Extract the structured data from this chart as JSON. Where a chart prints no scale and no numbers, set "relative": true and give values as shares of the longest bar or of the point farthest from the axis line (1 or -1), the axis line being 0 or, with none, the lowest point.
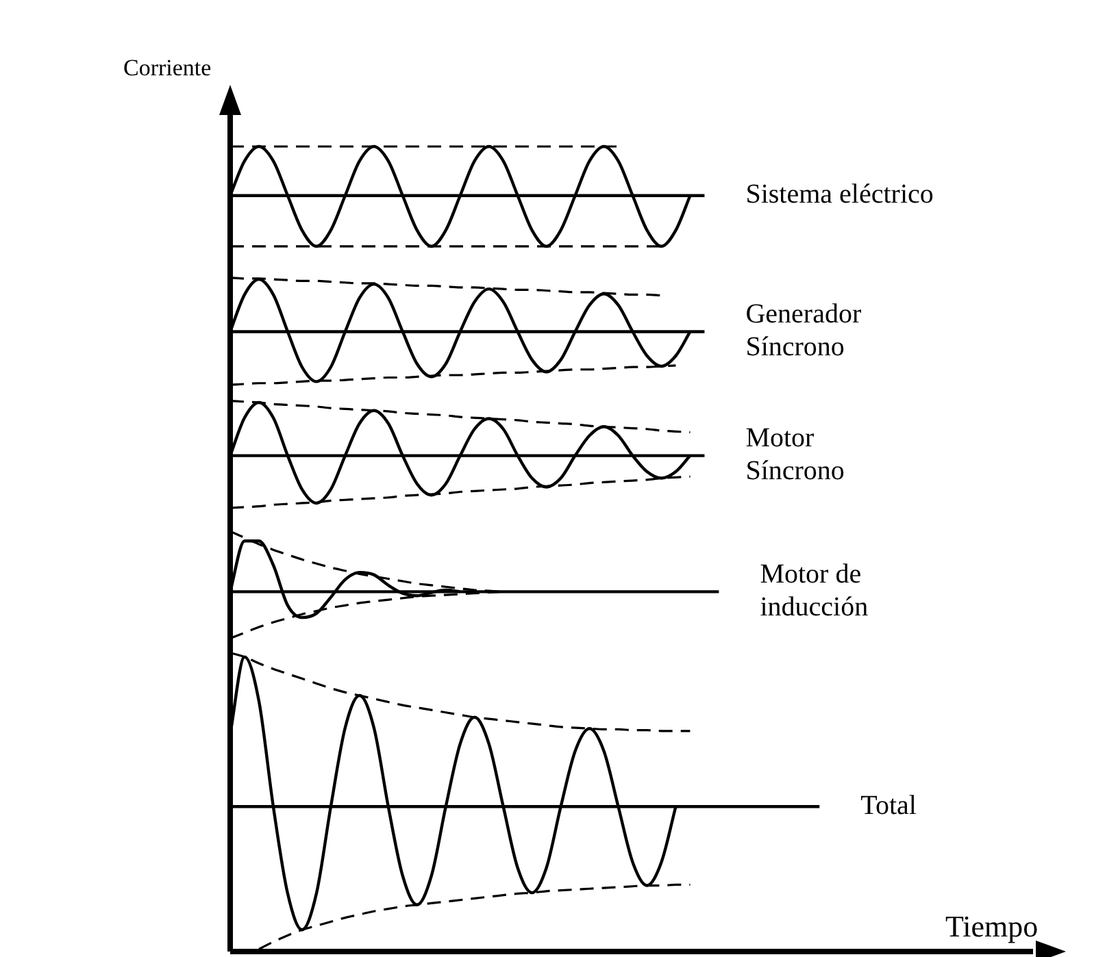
{
  "chart_data": {
    "type": "line",
    "relative": true,
    "xlabel": "Tiempo",
    "ylabel": "Corriente",
    "legend": false,
    "marker": "none",
    "categories": [
      null,
      null,
      null,
      null,
      null,
      null,
      null,
      null,
      null,
      null,
      null,
      null,
      null,
      null,
      null,
      null,
      null,
      null,
      null,
      null,
      null,
      null,
      null,
      null,
      null,
      null,
      null,
      null,
      null,
      null,
      null,
      null,
      null,
      null,
      null,
      null,
      null,
      null,
      null,
      null,
      null,
      null,
      null,
      null,
      null,
      null,
      null,
      null,
      null,
      null,
      null,
      null,
      null,
      null,
      null,
      null,
      null,
      null
    ],
    "series": [
      {
        "color": "#000000",
        "line_style": "solid",
        "values": [
          0.939,
          0.982,
          1,
          0.982,
          0.939,
          0.896,
          0.876,
          0.896,
          0.939,
          0.982,
          1,
          0.982,
          0.939,
          0.896,
          0.876,
          0.896,
          0.939,
          0.982,
          1,
          0.982,
          0.939,
          0.896,
          0.876,
          0.896,
          0.939,
          0.982,
          1,
          0.982,
          0.939,
          0.896,
          0.876,
          0.896,
          0.939,
          null,
          null,
          null,
          null,
          null,
          null,
          null,
          null,
          null,
          null,
          null,
          null,
          null,
          null,
          null,
          null,
          null,
          null,
          null,
          null,
          null,
          null,
          null,
          null,
          null
        ]
      },
      {
        "color": "#000000",
        "line_style": "dashed",
        "values": [
          1,
          1,
          1,
          1,
          1,
          1,
          1,
          1,
          1,
          1,
          1,
          1,
          1,
          1,
          1,
          1,
          1,
          1,
          1,
          1,
          1,
          1,
          1,
          1,
          1,
          1,
          1,
          1,
          null,
          null,
          null,
          null,
          null,
          null,
          null,
          null,
          null,
          null,
          null,
          null,
          null,
          null,
          null,
          null,
          null,
          null,
          null,
          null,
          null,
          null,
          null,
          null,
          null,
          null,
          null,
          null,
          null,
          null
        ]
      },
      {
        "color": "#000000",
        "line_style": "dashed",
        "values": [
          0.876,
          0.876,
          0.876,
          0.876,
          0.876,
          0.876,
          0.876,
          0.876,
          0.876,
          0.876,
          0.876,
          0.876,
          0.876,
          0.876,
          0.876,
          0.876,
          0.876,
          0.876,
          0.876,
          0.876,
          0.876,
          0.876,
          0.876,
          0.876,
          0.876,
          0.876,
          0.876,
          0.876,
          0.876,
          0.876,
          0.876,
          null,
          null,
          null,
          null,
          null,
          null,
          null,
          null,
          null,
          null,
          null,
          null,
          null,
          null,
          null,
          null,
          null,
          null,
          null,
          null,
          null,
          null,
          null,
          null,
          null,
          null,
          null
        ]
      },
      {
        "name": "Sistema eléctrico",
        "color": "#000000",
        "line_style": "solid",
        "values": [
          0.939,
          0.939,
          0.939,
          0.939,
          0.939,
          0.939,
          0.939,
          0.939,
          0.939,
          0.939,
          0.939,
          0.939,
          0.939,
          0.939,
          0.939,
          0.939,
          0.939,
          0.939,
          0.939,
          0.939,
          0.939,
          0.939,
          0.939,
          0.939,
          0.939,
          0.939,
          0.939,
          0.939,
          0.939,
          0.939,
          0.939,
          0.939,
          0.939,
          0.939,
          null,
          null,
          null,
          null,
          null,
          null,
          null,
          null,
          null,
          null,
          null,
          null,
          null,
          null,
          null,
          null,
          null,
          null,
          null,
          null,
          null,
          null,
          null,
          null
        ]
      },
      {
        "color": "#000000",
        "line_style": "solid",
        "values": [
          0.77,
          0.816,
          0.835,
          0.816,
          0.77,
          0.726,
          0.708,
          0.726,
          0.77,
          0.812,
          0.829,
          0.812,
          0.77,
          0.73,
          0.714,
          0.73,
          0.77,
          0.807,
          0.823,
          0.807,
          0.77,
          0.735,
          0.72,
          0.735,
          0.77,
          0.803,
          0.817,
          0.803,
          0.77,
          0.74,
          0.727,
          0.74,
          0.77,
          null,
          null,
          null,
          null,
          null,
          null,
          null,
          null,
          null,
          null,
          null,
          null,
          null,
          null,
          null,
          null,
          null,
          null,
          null,
          null,
          null,
          null,
          null,
          null,
          null
        ]
      },
      {
        "color": "#000000",
        "line_style": "dashed",
        "values": [
          0.837,
          0.836,
          0.836,
          0.835,
          0.834,
          0.833,
          0.833,
          0.832,
          0.831,
          0.83,
          0.83,
          0.829,
          0.828,
          0.827,
          0.827,
          0.826,
          0.825,
          0.825,
          0.824,
          0.823,
          0.822,
          0.822,
          0.821,
          0.82,
          0.819,
          0.819,
          0.818,
          0.817,
          0.816,
          0.816,
          0.815,
          null,
          null,
          null,
          null,
          null,
          null,
          null,
          null,
          null,
          null,
          null,
          null,
          null,
          null,
          null,
          null,
          null,
          null,
          null,
          null,
          null,
          null,
          null,
          null,
          null,
          null,
          null
        ]
      },
      {
        "color": "#000000",
        "line_style": "dashed",
        "values": [
          0.704,
          0.705,
          0.706,
          0.706,
          0.707,
          0.708,
          0.709,
          0.709,
          0.71,
          0.711,
          0.712,
          0.713,
          0.713,
          0.714,
          0.715,
          0.716,
          0.716,
          0.717,
          0.718,
          0.719,
          0.719,
          0.72,
          0.721,
          0.722,
          0.723,
          0.723,
          0.724,
          0.725,
          0.726,
          0.726,
          0.727,
          0.728,
          null,
          null,
          null,
          null,
          null,
          null,
          null,
          null,
          null,
          null,
          null,
          null,
          null,
          null,
          null,
          null,
          null,
          null,
          null,
          null,
          null,
          null,
          null,
          null,
          null,
          null
        ]
      },
      {
        "name": "Generador\nSíncrono",
        "color": "#000000",
        "line_style": "solid",
        "values": [
          0.77,
          0.77,
          0.77,
          0.77,
          0.77,
          0.77,
          0.77,
          0.77,
          0.77,
          0.77,
          0.77,
          0.77,
          0.77,
          0.77,
          0.77,
          0.77,
          0.77,
          0.77,
          0.77,
          0.77,
          0.77,
          0.77,
          0.77,
          0.77,
          0.77,
          0.77,
          0.77,
          0.77,
          0.77,
          0.77,
          0.77,
          0.77,
          0.77,
          0.77,
          null,
          null,
          null,
          null,
          null,
          null,
          null,
          null,
          null,
          null,
          null,
          null,
          null,
          null,
          null,
          null,
          null,
          null,
          null,
          null,
          null,
          null,
          null,
          null
        ]
      },
      {
        "color": "#000000",
        "line_style": "solid",
        "values": [
          0.616,
          0.663,
          0.682,
          0.663,
          0.616,
          0.574,
          0.557,
          0.574,
          0.616,
          0.656,
          0.672,
          0.656,
          0.616,
          0.581,
          0.567,
          0.581,
          0.616,
          0.649,
          0.662,
          0.649,
          0.616,
          0.588,
          0.577,
          0.588,
          0.616,
          0.641,
          0.652,
          0.641,
          0.616,
          0.596,
          0.588,
          0.596,
          0.616,
          null,
          null,
          null,
          null,
          null,
          null,
          null,
          null,
          null,
          null,
          null,
          null,
          null,
          null,
          null,
          null,
          null,
          null,
          null,
          null,
          null,
          null,
          null,
          null,
          null
        ]
      },
      {
        "color": "#000000",
        "line_style": "dashed",
        "values": [
          0.684,
          0.683,
          0.682,
          0.68,
          0.679,
          0.678,
          0.677,
          0.675,
          0.674,
          0.673,
          0.672,
          0.671,
          0.669,
          0.668,
          0.667,
          0.666,
          0.664,
          0.663,
          0.662,
          0.661,
          0.66,
          0.658,
          0.657,
          0.656,
          0.655,
          0.653,
          0.652,
          0.651,
          0.65,
          0.649,
          0.647,
          0.646,
          0.645,
          null,
          null,
          null,
          null,
          null,
          null,
          null,
          null,
          null,
          null,
          null,
          null,
          null,
          null,
          null,
          null,
          null,
          null,
          null,
          null,
          null,
          null,
          null,
          null,
          null
        ]
      },
      {
        "color": "#000000",
        "line_style": "dashed",
        "values": [
          0.551,
          0.552,
          0.553,
          0.555,
          0.556,
          0.557,
          0.558,
          0.56,
          0.561,
          0.562,
          0.563,
          0.564,
          0.566,
          0.567,
          0.568,
          0.569,
          0.571,
          0.572,
          0.573,
          0.574,
          0.575,
          0.577,
          0.578,
          0.579,
          0.58,
          0.582,
          0.583,
          0.584,
          0.585,
          0.586,
          0.588,
          0.589,
          0.59,
          null,
          null,
          null,
          null,
          null,
          null,
          null,
          null,
          null,
          null,
          null,
          null,
          null,
          null,
          null,
          null,
          null,
          null,
          null,
          null,
          null,
          null,
          null,
          null,
          null
        ]
      },
      {
        "name": "Motor\nSíncrono",
        "color": "#000000",
        "line_style": "solid",
        "values": [
          0.616,
          0.616,
          0.616,
          0.616,
          0.616,
          0.616,
          0.616,
          0.616,
          0.616,
          0.616,
          0.616,
          0.616,
          0.616,
          0.616,
          0.616,
          0.616,
          0.616,
          0.616,
          0.616,
          0.616,
          0.616,
          0.616,
          0.616,
          0.616,
          0.616,
          0.616,
          0.616,
          0.616,
          0.616,
          0.616,
          0.616,
          0.616,
          0.616,
          0.616,
          null,
          null,
          null,
          null,
          null,
          null,
          null,
          null,
          null,
          null,
          null,
          null,
          null,
          null,
          null,
          null,
          null,
          null,
          null,
          null,
          null,
          null,
          null,
          null
        ]
      },
      {
        "color": "#000000",
        "line_style": "solid",
        "values": [
          0.447,
          0.51,
          0.51,
          0.48,
          0.43,
          0.415,
          0.42,
          0.44,
          0.462,
          0.471,
          0.468,
          0.455,
          0.445,
          0.442,
          0.446,
          0.449,
          0.447,
          null,
          null,
          null,
          null,
          null,
          null,
          null,
          null,
          null,
          null,
          null,
          null,
          null,
          null,
          null,
          null,
          null,
          null,
          null,
          null,
          null,
          null,
          null,
          null,
          null,
          null,
          null,
          null,
          null,
          null,
          null,
          null,
          null,
          null,
          null,
          null,
          null,
          null,
          null,
          null,
          null
        ]
      },
      {
        "color": "#000000",
        "line_style": "dashed",
        "values": [
          0.522,
          0.514,
          0.506,
          0.499,
          0.493,
          0.487,
          0.482,
          0.477,
          0.473,
          0.469,
          0.466,
          0.463,
          0.46,
          0.457,
          0.455,
          0.453,
          0.451,
          0.449,
          0.448,
          0.447,
          null,
          null,
          null,
          null,
          null,
          null,
          null,
          null,
          null,
          null,
          null,
          null,
          null,
          null,
          null,
          null,
          null,
          null,
          null,
          null,
          null,
          null,
          null,
          null,
          null,
          null,
          null,
          null,
          null,
          null,
          null,
          null,
          null,
          null,
          null,
          null,
          null,
          null
        ]
      },
      {
        "color": "#000000",
        "line_style": "dashed",
        "values": [
          0.389,
          0.396,
          0.403,
          0.409,
          0.414,
          0.419,
          0.423,
          0.427,
          0.43,
          0.433,
          0.435,
          0.437,
          0.439,
          0.441,
          0.442,
          0.443,
          0.444,
          0.445,
          0.446,
          0.447,
          null,
          null,
          null,
          null,
          null,
          null,
          null,
          null,
          null,
          null,
          null,
          null,
          null,
          null,
          null,
          null,
          null,
          null,
          null,
          null,
          null,
          null,
          null,
          null,
          null,
          null,
          null,
          null,
          null,
          null,
          null,
          null,
          null,
          null,
          null,
          null,
          null,
          null
        ]
      },
      {
        "name": "Motor de\ninducción",
        "color": "#000000",
        "line_style": "solid",
        "values": [
          0.447,
          0.447,
          0.447,
          0.447,
          0.447,
          0.447,
          0.447,
          0.447,
          0.447,
          0.447,
          0.447,
          0.447,
          0.447,
          0.447,
          0.447,
          0.447,
          0.447,
          0.447,
          0.447,
          0.447,
          0.447,
          0.447,
          0.447,
          0.447,
          0.447,
          0.447,
          0.447,
          0.447,
          0.447,
          0.447,
          0.447,
          0.447,
          0.447,
          0.447,
          0.447,
          null,
          null,
          null,
          null,
          null,
          null,
          null,
          null,
          null,
          null,
          null,
          null,
          null,
          null,
          null,
          null,
          null,
          null,
          null,
          null,
          null,
          null,
          null
        ]
      },
      {
        "color": "#000000",
        "line_style": "solid",
        "values": [
          0.27,
          0.366,
          0.311,
          0.18,
          0.072,
          0.027,
          0.072,
          0.18,
          0.278,
          0.318,
          0.278,
          0.18,
          0.094,
          0.058,
          0.094,
          0.18,
          0.258,
          0.291,
          0.258,
          0.18,
          0.104,
          0.073,
          0.104,
          0.18,
          0.249,
          0.277,
          0.249,
          0.18,
          0.111,
          0.082,
          0.111,
          0.18,
          null,
          null,
          null,
          null,
          null,
          null,
          null,
          null,
          null,
          null,
          null,
          null,
          null,
          null,
          null,
          null,
          null,
          null,
          null,
          null,
          null,
          null,
          null,
          null,
          null,
          null
        ]
      },
      {
        "color": "#000000",
        "line_style": "dashed",
        "values": [
          0.371,
          0.366,
          0.358,
          0.351,
          0.345,
          0.339,
          0.333,
          0.327,
          0.322,
          0.318,
          0.314,
          0.31,
          0.306,
          0.303,
          0.3,
          0.297,
          0.294,
          0.291,
          0.289,
          0.287,
          0.285,
          0.283,
          0.281,
          0.279,
          0.278,
          0.277,
          0.276,
          0.276,
          0.275,
          0.275,
          0.274,
          0.274,
          0.274,
          null,
          null,
          null,
          null,
          null,
          null,
          null,
          null,
          null,
          null,
          null,
          null,
          null,
          null,
          null,
          null,
          null,
          null,
          null,
          null,
          null,
          null,
          null,
          null,
          null
        ]
      },
      {
        "color": "#000000",
        "line_style": "dashed",
        "values": [
          null,
          null,
          0.003,
          0.012,
          0.02,
          0.027,
          0.032,
          0.037,
          0.042,
          0.046,
          0.05,
          0.053,
          0.056,
          0.058,
          0.06,
          0.062,
          0.064,
          0.066,
          0.068,
          0.07,
          0.072,
          0.073,
          0.075,
          0.076,
          0.077,
          0.078,
          0.079,
          0.08,
          0.081,
          0.082,
          0.082,
          0.083,
          0.083,
          null,
          null,
          null,
          null,
          null,
          null,
          null,
          null,
          null,
          null,
          null,
          null,
          null,
          null,
          null,
          null,
          null,
          null,
          null,
          null,
          null,
          null,
          null,
          null,
          null
        ]
      },
      {
        "name": "Total",
        "color": "#000000",
        "line_style": "solid",
        "values": [
          0.18,
          0.18,
          0.18,
          0.18,
          0.18,
          0.18,
          0.18,
          0.18,
          0.18,
          0.18,
          0.18,
          0.18,
          0.18,
          0.18,
          0.18,
          0.18,
          0.18,
          0.18,
          0.18,
          0.18,
          0.18,
          0.18,
          0.18,
          0.18,
          0.18,
          0.18,
          0.18,
          0.18,
          0.18,
          0.18,
          0.18,
          0.18,
          0.18,
          0.18,
          0.18,
          0.18,
          0.18,
          0.18,
          0.18,
          0.18,
          0.18,
          0.18,
          null,
          null,
          null,
          null,
          null,
          null,
          null,
          null,
          null,
          null,
          null,
          null,
          null,
          null,
          null,
          null
        ]
      }
    ]
  }
}
